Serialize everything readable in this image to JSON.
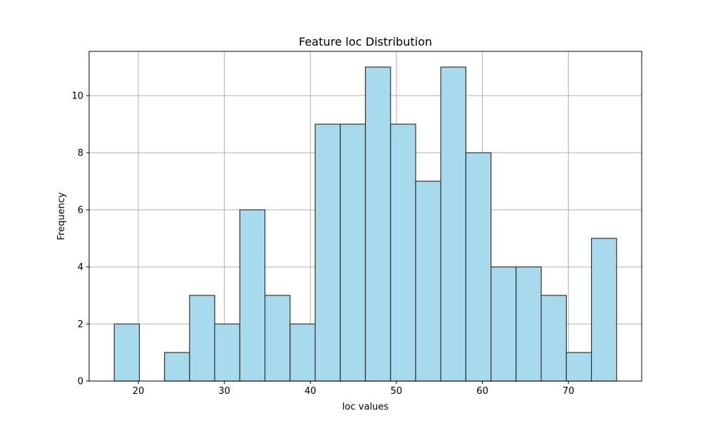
{
  "chart_data": {
    "type": "bar",
    "title": "Feature loc Distribution",
    "xlabel": "loc values",
    "ylabel": "Frequency",
    "bin_edges": [
      17.2,
      20.12,
      23.04,
      25.96,
      28.88,
      31.8,
      34.72,
      37.64,
      40.56,
      43.48,
      46.4,
      49.32,
      52.24,
      55.16,
      58.08,
      61.0,
      63.92,
      66.84,
      69.76,
      72.68,
      75.6
    ],
    "values": [
      2,
      0,
      1,
      3,
      2,
      6,
      3,
      2,
      9,
      9,
      11,
      9,
      7,
      11,
      8,
      4,
      4,
      3,
      1,
      5
    ],
    "xlim": [
      14.28,
      78.52
    ],
    "ylim": [
      0,
      11.55
    ],
    "xticks": [
      20,
      30,
      40,
      50,
      60,
      70
    ],
    "yticks": [
      0,
      2,
      4,
      6,
      8,
      10
    ],
    "grid": true,
    "bar_color": "#a7daed",
    "edge_color": "#333333",
    "grid_color": "#b0b0b0"
  }
}
